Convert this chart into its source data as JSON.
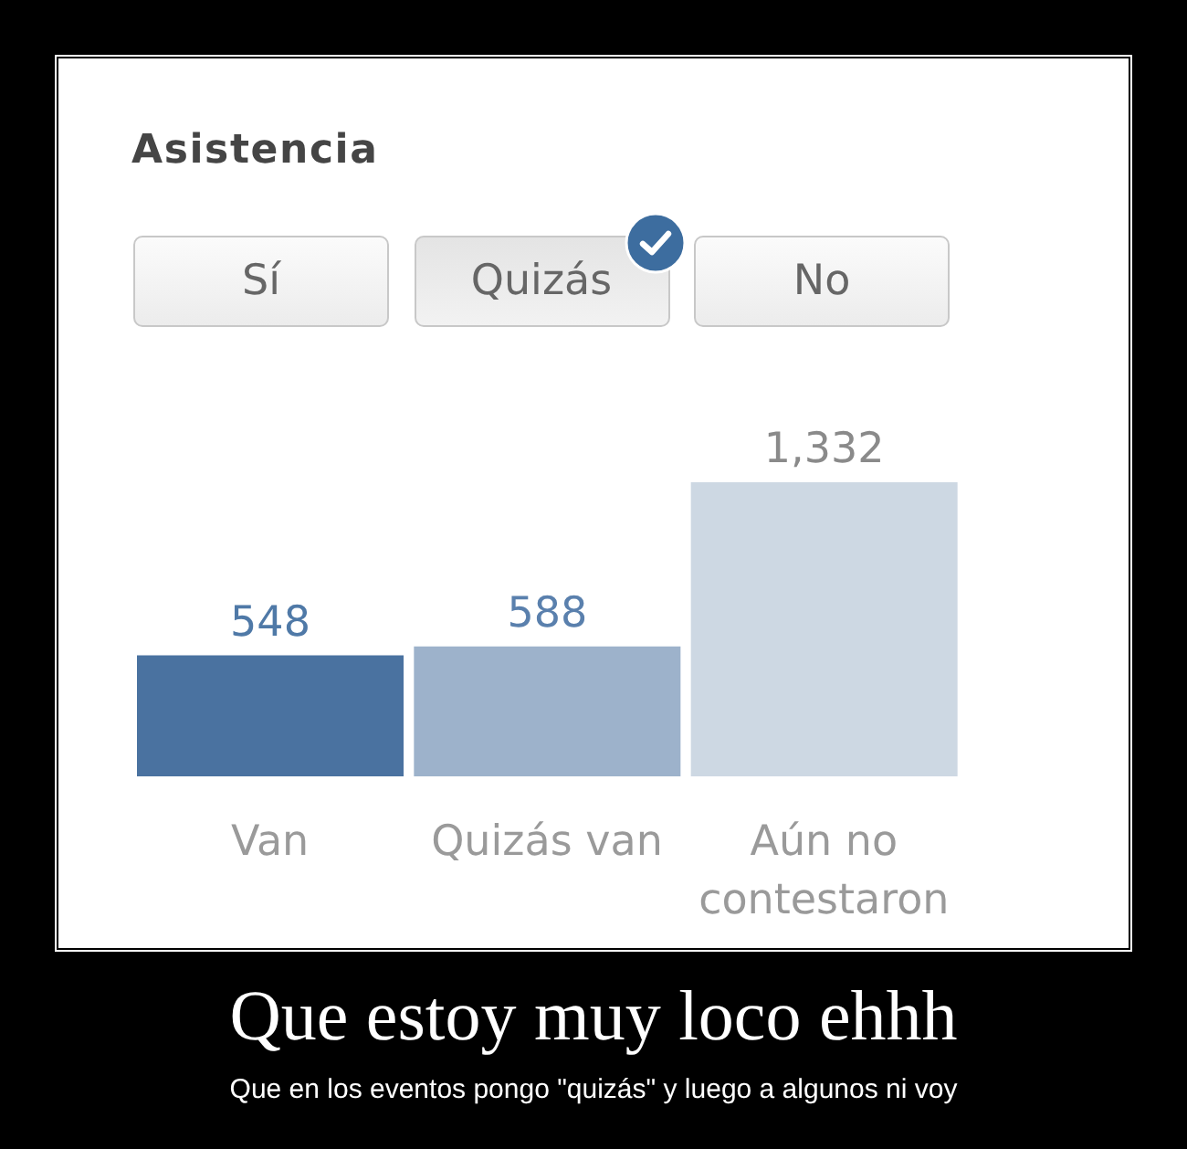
{
  "chart_data": {
    "type": "bar",
    "title": "Asistencia",
    "categories": [
      "Van",
      "Quizás van",
      "Aún no contestaron"
    ],
    "values": [
      548,
      588,
      1332
    ],
    "colors": [
      "#4a72a0",
      "#9db2cb",
      "#cdd8e3"
    ],
    "value_labels": [
      "548",
      "588",
      "1,332"
    ],
    "annotations": [
      "Sí",
      "Quizás",
      "No",
      "Que estoy muy loco ehhh",
      "Que en los eventos pongo \"quizás\" y luego a algunos ni voy"
    ]
  }
}
